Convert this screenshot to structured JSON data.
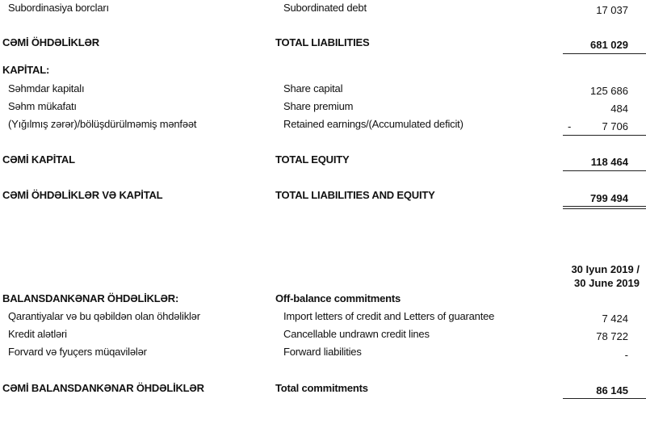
{
  "rows": {
    "subordinated": {
      "az": "Subordinasiya borcları",
      "en": "Subordinated debt",
      "value": "17 037"
    },
    "total_liabilities": {
      "az": "CƏMİ ÖHDƏLİKLƏR",
      "en": "TOTAL LIABILITIES",
      "value": "681 029"
    },
    "capital_heading": {
      "az": "KAPİTAL:"
    },
    "share_capital": {
      "az": "Səhmdar kapitalı",
      "en": "Share capital",
      "value": "125 686"
    },
    "share_premium": {
      "az": "Səhm mükafatı",
      "en": "Share premium",
      "value": "484"
    },
    "retained": {
      "az": "(Yığılmış zərər)/bölüşdürülməmiş mənfəət",
      "en": "Retained earnings/(Accumulated deficit)",
      "sign": "-",
      "value": "7 706"
    },
    "total_equity": {
      "az": "CƏMİ KAPİTAL",
      "en": "TOTAL EQUITY",
      "value": "118 464"
    },
    "total_liab_equity": {
      "az": "CƏMİ ÖHDƏLİKLƏR VƏ KAPİTAL",
      "en": "TOTAL LIABILITIES AND EQUITY",
      "value": "799 494"
    }
  },
  "off_balance": {
    "date_header_az": "30 Iyun 2019 /",
    "date_header_en": "30 June 2019",
    "heading_az": "BALANSDANKƏNAR ÖHDƏLİKLƏR:",
    "heading_en": "Off-balance commitments",
    "items": [
      {
        "az": "Qarantiyalar və bu qəbildən olan öhdəliklər",
        "en": "Import letters of credit and Letters of guarantee",
        "value": "7 424"
      },
      {
        "az": "Kredit alətləri",
        "en": "Cancellable undrawn credit lines",
        "value": "78 722"
      },
      {
        "az": "Forvard və fyuçers müqavilələr",
        "en": "Forward liabilities",
        "value": "-"
      }
    ],
    "total": {
      "az": "CƏMİ BALANSDANKƏNAR ÖHDƏLİKLƏR",
      "en": "Total commitments",
      "value": "86 145"
    }
  }
}
